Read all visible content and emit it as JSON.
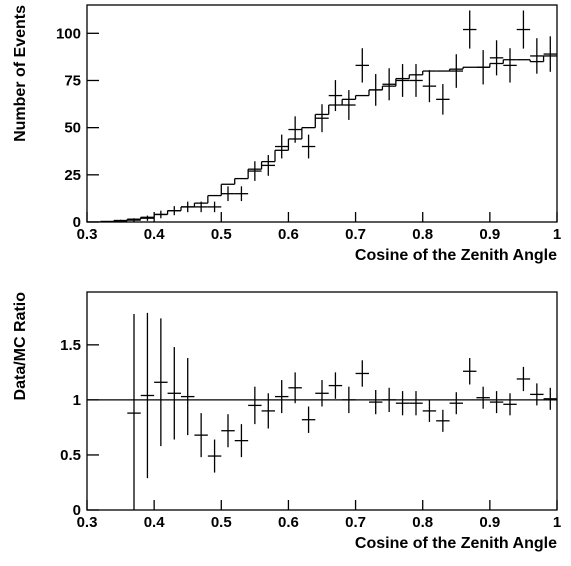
{
  "chart_data": [
    {
      "type": "histogram",
      "xlabel": "Cosine of the Zenith Angle",
      "ylabel": "Number of Events",
      "xlim": [
        0.3,
        1
      ],
      "xticks": [
        0.3,
        0.4,
        0.5,
        0.6,
        0.7,
        0.8,
        0.9,
        1
      ],
      "ylim": [
        0,
        115
      ],
      "yticks": [
        0,
        25,
        50,
        75,
        100
      ],
      "color": "#000000",
      "mc": {
        "bins": [
          0.3,
          0.32,
          0.34,
          0.36,
          0.38,
          0.4,
          0.42,
          0.44,
          0.46,
          0.48,
          0.5,
          0.52,
          0.54,
          0.56,
          0.58,
          0.6,
          0.62,
          0.64,
          0.66,
          0.68,
          0.7,
          0.72,
          0.74,
          0.76,
          0.78,
          0.8,
          0.82,
          0.84,
          0.86,
          0.88,
          0.9,
          0.92,
          0.94,
          0.96,
          0.98,
          1
        ],
        "counts": [
          0,
          0.3,
          0.8,
          1.5,
          2.5,
          4,
          6,
          8,
          10,
          14,
          20,
          23,
          28,
          32,
          38,
          44,
          50,
          57,
          62,
          65,
          67,
          70,
          72,
          76,
          78,
          80,
          80,
          81,
          82,
          82,
          84,
          86,
          86,
          85,
          88
        ]
      },
      "data": {
        "x": [
          0.35,
          0.37,
          0.39,
          0.41,
          0.43,
          0.45,
          0.47,
          0.49,
          0.51,
          0.53,
          0.55,
          0.57,
          0.59,
          0.61,
          0.63,
          0.65,
          0.67,
          0.69,
          0.71,
          0.73,
          0.75,
          0.77,
          0.79,
          0.81,
          0.83,
          0.85,
          0.87,
          0.89,
          0.91,
          0.93,
          0.95,
          0.97,
          0.99
        ],
        "xerr": 0.01,
        "values": [
          0.5,
          1,
          2,
          4,
          6,
          8,
          8,
          8,
          15,
          15,
          27,
          30,
          40,
          49,
          40,
          55,
          67,
          62,
          83,
          70,
          73,
          75,
          75,
          72,
          65,
          80,
          102,
          82,
          87,
          83,
          102,
          88,
          89
        ],
        "errors": [
          0.7,
          1,
          1.4,
          2,
          2.4,
          2.8,
          2.8,
          2.8,
          3.9,
          3.9,
          5.2,
          5.5,
          6.3,
          7,
          6.3,
          7.4,
          8.2,
          7.9,
          9.1,
          8.4,
          8.5,
          8.7,
          8.7,
          8.5,
          8.1,
          8.9,
          10.1,
          9.1,
          9.3,
          9.1,
          10.1,
          9.4,
          9.4
        ]
      }
    },
    {
      "type": "errorbar",
      "xlabel": "Cosine of the Zenith Angle",
      "ylabel": "Data/MC Ratio",
      "xlim": [
        0.3,
        1
      ],
      "xticks": [
        0.3,
        0.4,
        0.5,
        0.6,
        0.7,
        0.8,
        0.9,
        1
      ],
      "ylim": [
        0,
        1.98
      ],
      "yticks": [
        0,
        0.5,
        1,
        1.5
      ],
      "reference_line": 1,
      "color": "#000000",
      "data": {
        "x": [
          0.37,
          0.39,
          0.41,
          0.43,
          0.45,
          0.47,
          0.49,
          0.51,
          0.53,
          0.55,
          0.57,
          0.59,
          0.61,
          0.63,
          0.65,
          0.67,
          0.69,
          0.71,
          0.73,
          0.75,
          0.77,
          0.79,
          0.81,
          0.83,
          0.85,
          0.87,
          0.89,
          0.91,
          0.93,
          0.95,
          0.97,
          0.99
        ],
        "xerr": 0.01,
        "values": [
          0.88,
          1.04,
          1.16,
          1.06,
          1.03,
          0.68,
          0.49,
          0.72,
          0.63,
          0.95,
          0.9,
          1.03,
          1.11,
          0.82,
          1.06,
          1.13,
          1.0,
          1.24,
          0.98,
          1.0,
          0.97,
          0.97,
          0.9,
          0.81,
          0.97,
          1.26,
          1.02,
          0.98,
          0.96,
          1.19,
          1.05,
          1.01
        ],
        "errors": [
          0.9,
          0.75,
          0.58,
          0.42,
          0.35,
          0.2,
          0.15,
          0.15,
          0.15,
          0.17,
          0.16,
          0.15,
          0.14,
          0.12,
          0.12,
          0.12,
          0.12,
          0.12,
          0.11,
          0.11,
          0.11,
          0.11,
          0.1,
          0.1,
          0.1,
          0.12,
          0.1,
          0.1,
          0.1,
          0.11,
          0.1,
          0.1
        ]
      }
    }
  ]
}
